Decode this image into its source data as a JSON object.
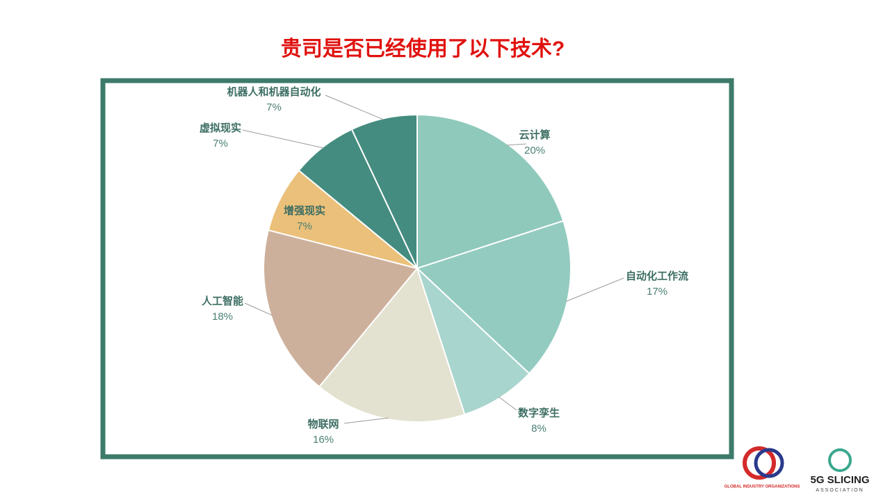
{
  "chart_data": {
    "type": "pie",
    "title": "贵司是否已经使用了以下技术?",
    "categories": [
      "云计算",
      "自动化工作流",
      "数字孪生",
      "物联网",
      "人工智能",
      "增强现实",
      "虚拟现实",
      "机器人和机器自动化"
    ],
    "values": [
      20,
      17,
      8,
      16,
      18,
      7,
      7,
      7
    ],
    "value_labels": [
      "20%",
      "17%",
      "8%",
      "16%",
      "18%",
      "7%",
      "7%",
      "7%"
    ],
    "colors": [
      "#8fc9bc",
      "#93cbc0",
      "#a8d5cd",
      "#e3e2d0",
      "#cdb09c",
      "#ebc07a",
      "#448c80",
      "#448c80"
    ]
  },
  "logos": {
    "gio": "GLOBAL INDUSTRY ORGANIZATIONS",
    "slicing": "5G SLICING",
    "slicing_sub": "ASSOCIATION"
  }
}
